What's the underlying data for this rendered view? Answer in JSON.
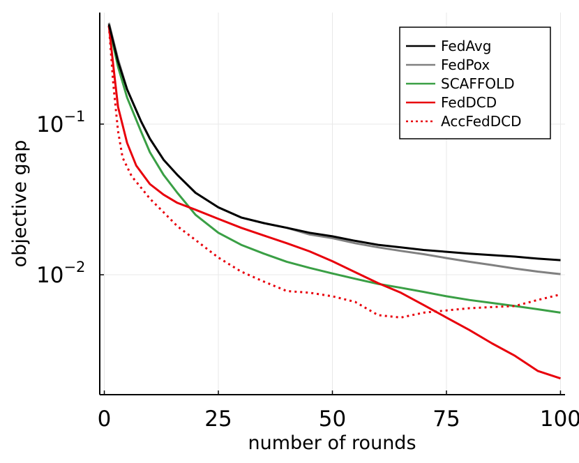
{
  "chart_data": {
    "type": "line",
    "xlabel": "number of rounds",
    "ylabel": "objective gap",
    "xlim": [
      -1,
      101
    ],
    "ylim": [
      0.0016,
      0.55
    ],
    "yscale": "log",
    "grid": true,
    "legend_position": "top-right",
    "x_ticks": [
      {
        "value": 0,
        "label": "0"
      },
      {
        "value": 25,
        "label": "25"
      },
      {
        "value": 50,
        "label": "50"
      },
      {
        "value": 75,
        "label": "75"
      },
      {
        "value": 100,
        "label": "100"
      }
    ],
    "y_ticks": [
      {
        "value": 0.1,
        "base": "10",
        "exp": "−1"
      },
      {
        "value": 0.01,
        "base": "10",
        "exp": "−2"
      }
    ],
    "series": [
      {
        "name": "FedAvg",
        "color": "#000000",
        "dash": "solid",
        "x": [
          1,
          3,
          5,
          8,
          10,
          13,
          16,
          20,
          25,
          30,
          35,
          40,
          45,
          50,
          55,
          60,
          65,
          70,
          75,
          80,
          85,
          90,
          95,
          100
        ],
        "y": [
          0.46,
          0.26,
          0.17,
          0.105,
          0.08,
          0.058,
          0.046,
          0.035,
          0.028,
          0.024,
          0.022,
          0.0205,
          0.019,
          0.018,
          0.0168,
          0.0158,
          0.0152,
          0.0146,
          0.0142,
          0.0138,
          0.0135,
          0.0132,
          0.0128,
          0.0125
        ]
      },
      {
        "name": "FedPox",
        "color": "#808080",
        "dash": "solid",
        "x": [
          1,
          3,
          5,
          8,
          10,
          13,
          16,
          20,
          25,
          30,
          35,
          40,
          45,
          50,
          55,
          60,
          65,
          70,
          75,
          80,
          85,
          90,
          95,
          100
        ],
        "y": [
          0.47,
          0.27,
          0.17,
          0.105,
          0.08,
          0.058,
          0.046,
          0.035,
          0.028,
          0.024,
          0.022,
          0.0205,
          0.0185,
          0.0175,
          0.0162,
          0.0152,
          0.0144,
          0.0137,
          0.0129,
          0.0122,
          0.0116,
          0.011,
          0.0105,
          0.0101
        ]
      },
      {
        "name": "SCAFFOLD",
        "color": "#3a9f45",
        "dash": "solid",
        "x": [
          1,
          3,
          5,
          8,
          10,
          13,
          16,
          20,
          25,
          30,
          35,
          40,
          45,
          50,
          55,
          60,
          65,
          70,
          75,
          80,
          85,
          90,
          95,
          100
        ],
        "y": [
          0.45,
          0.24,
          0.15,
          0.09,
          0.065,
          0.046,
          0.035,
          0.025,
          0.019,
          0.0158,
          0.0138,
          0.0122,
          0.0111,
          0.0102,
          0.0094,
          0.0087,
          0.0082,
          0.0077,
          0.0072,
          0.0068,
          0.0065,
          0.0062,
          0.0059,
          0.0056
        ]
      },
      {
        "name": "FedDCD",
        "color": "#e8000b",
        "dash": "solid",
        "x": [
          1,
          2,
          3,
          5,
          7,
          10,
          13,
          16,
          20,
          25,
          30,
          35,
          40,
          45,
          50,
          55,
          60,
          65,
          70,
          75,
          80,
          85,
          90,
          95,
          100
        ],
        "y": [
          0.45,
          0.24,
          0.13,
          0.075,
          0.053,
          0.04,
          0.034,
          0.03,
          0.027,
          0.0235,
          0.0205,
          0.0182,
          0.0162,
          0.0143,
          0.0123,
          0.0104,
          0.0088,
          0.0076,
          0.0063,
          0.0052,
          0.0043,
          0.0035,
          0.0029,
          0.0023,
          0.00205
        ]
      },
      {
        "name": "AccFedDCD",
        "color": "#e8000b",
        "dash": "dotted",
        "x": [
          1,
          2,
          3,
          4,
          6,
          8,
          10,
          13,
          16,
          20,
          25,
          30,
          35,
          40,
          45,
          50,
          55,
          60,
          65,
          70,
          75,
          80,
          85,
          90,
          95,
          100
        ],
        "y": [
          0.45,
          0.18,
          0.09,
          0.06,
          0.045,
          0.038,
          0.032,
          0.026,
          0.021,
          0.017,
          0.013,
          0.0105,
          0.009,
          0.0078,
          0.0076,
          0.0072,
          0.0066,
          0.0054,
          0.0052,
          0.0056,
          0.0058,
          0.006,
          0.0061,
          0.0062,
          0.0068,
          0.0074
        ]
      }
    ]
  }
}
